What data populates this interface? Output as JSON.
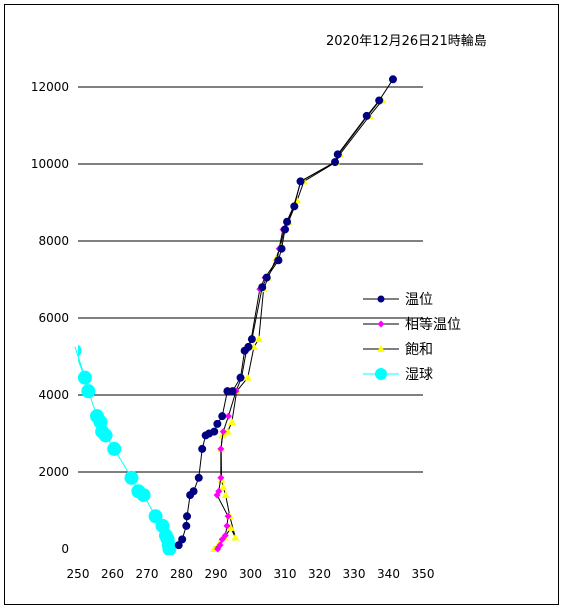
{
  "chart_data": {
    "type": "line",
    "title": "2020年12月26日21時輪島",
    "xlabel": "",
    "ylabel": "",
    "xlim": [
      250,
      350
    ],
    "ylim": [
      0,
      12000
    ],
    "x_ticks": [
      "250",
      "260",
      "270",
      "280",
      "290",
      "300",
      "310",
      "320",
      "330",
      "340",
      "350"
    ],
    "y_ticks": [
      "0",
      "2000",
      "4000",
      "6000",
      "8000",
      "10000",
      "12000"
    ],
    "grid": "horizontal",
    "legend_position": "right",
    "series": [
      {
        "name": "温位",
        "color": "#000080",
        "line_color": "#000000",
        "marker": "circle",
        "x": [
          279.2,
          280.2,
          281.4,
          281.6,
          282.5,
          283.5,
          285.0,
          286.0,
          287.0,
          288.0,
          289.5,
          290.4,
          291.8,
          293.3,
          294.8,
          297.1,
          298.3,
          299.4,
          300.4,
          303.4,
          304.7,
          308.1,
          309.0,
          310.0,
          310.6,
          312.7,
          314.5,
          324.5,
          325.3,
          333.7,
          337.3,
          341.3
        ],
        "y": [
          100,
          250,
          600,
          850,
          1400,
          1500,
          1850,
          2600,
          2950,
          3000,
          3050,
          3250,
          3450,
          4100,
          4100,
          4450,
          5150,
          5250,
          5450,
          6800,
          7050,
          7500,
          7800,
          8300,
          8500,
          8900,
          9550,
          10050,
          10250,
          11250,
          11650,
          12200
        ]
      },
      {
        "name": "相等温位",
        "color": "#ff00ff",
        "line_color": "#000000",
        "marker": "diamond",
        "x": [
          290.5,
          291.2,
          291.8,
          292.7,
          293.2,
          293.5,
          290.3,
          290.8,
          291.4,
          291.4,
          292.1,
          293.6,
          295.8,
          297.4,
          298.8,
          300.2,
          302.7,
          304.2,
          307.7,
          308.3,
          309.4,
          310.5,
          312.5,
          314.6,
          324.6,
          325.5,
          333.9,
          337.5
        ],
        "y": [
          0,
          100,
          250,
          350,
          600,
          850,
          1400,
          1500,
          1850,
          2600,
          3050,
          3450,
          4100,
          4450,
          5150,
          5450,
          6750,
          7050,
          7500,
          7800,
          8300,
          8500,
          8900,
          9550,
          10050,
          10250,
          11250,
          11650
        ]
      },
      {
        "name": "飽和",
        "color": "#ffff00",
        "line_color": "#000000",
        "marker": "triangle",
        "x": [
          289.5,
          291.0,
          292.5,
          294.3,
          295.6,
          294.0,
          292.8,
          292.1,
          291.6,
          291.5,
          291.8,
          292.2,
          293.4,
          294.6,
          296.0,
          299.2,
          301.0,
          302.4,
          303.8,
          305.1,
          307.4,
          308.6,
          309.8,
          311.0,
          313.5,
          315.5,
          324.8,
          325.9,
          334.5,
          338.2
        ],
        "y": [
          0,
          150,
          300,
          550,
          300,
          850,
          1400,
          1600,
          1800,
          2600,
          2950,
          3000,
          3050,
          3300,
          4100,
          4450,
          5250,
          5450,
          6750,
          7050,
          7550,
          7850,
          8300,
          8500,
          9050,
          9550,
          10050,
          10250,
          11250,
          11650
        ]
      },
      {
        "name": "湿球",
        "color": "#00ffff",
        "line_color": "#00ffff",
        "marker": "big-circle",
        "x": [
          249.0,
          252.0,
          253.0,
          255.5,
          256.5,
          257.0,
          258.0,
          260.5,
          265.5,
          267.5,
          269.0,
          272.5,
          274.5,
          275.5,
          276.0,
          276.3,
          276.5
        ],
        "y": [
          5150,
          4450,
          4100,
          3450,
          3300,
          3050,
          2950,
          2600,
          1850,
          1500,
          1400,
          850,
          600,
          350,
          250,
          100,
          0
        ]
      }
    ]
  }
}
